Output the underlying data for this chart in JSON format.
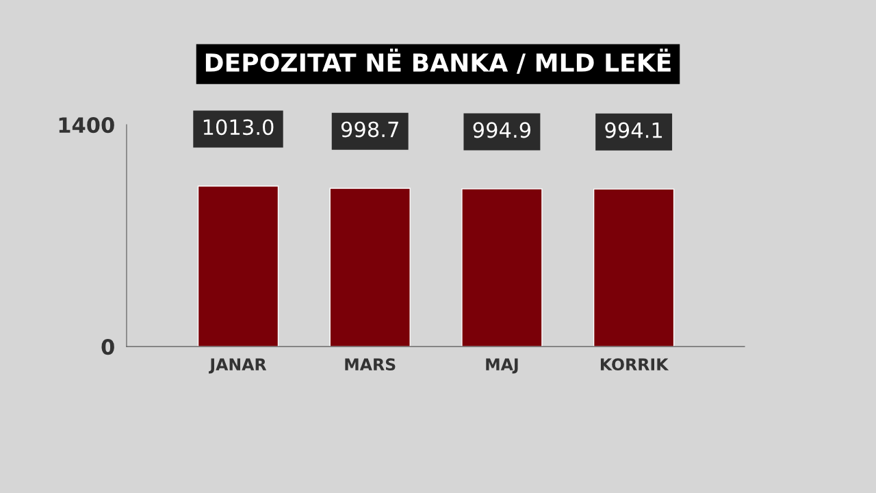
{
  "chart_data": {
    "type": "bar",
    "title": "DEPOZITAT NË BANKA / MLD LEKË",
    "categories": [
      "JANAR",
      "MARS",
      "MAJ",
      "KORRIK"
    ],
    "values": [
      1013.0,
      998.7,
      994.9,
      994.1
    ],
    "value_labels": [
      "1013.0",
      "998.7",
      "994.9",
      "994.1"
    ],
    "color": "#7a0008",
    "ylim": [
      0,
      1400
    ],
    "yticks": [
      0,
      1400
    ],
    "grid": false,
    "legend": false
  }
}
